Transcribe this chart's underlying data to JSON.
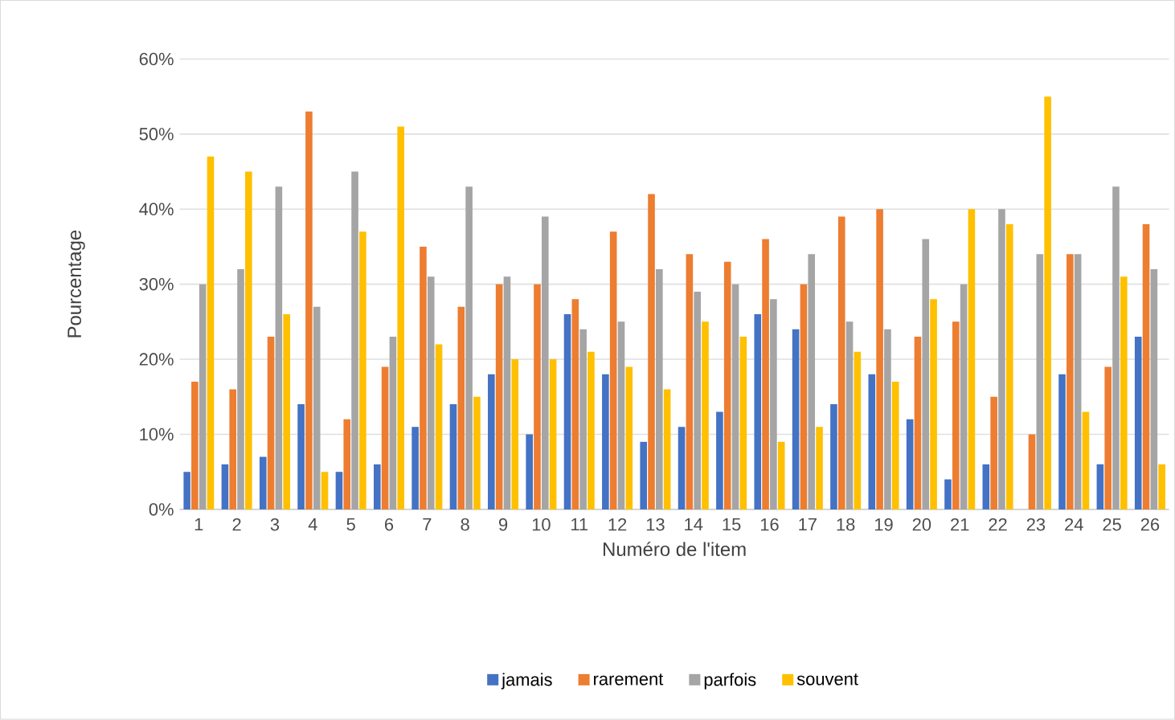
{
  "chart_data": {
    "type": "bar",
    "xlabel": "Numéro de l'item",
    "ylabel": "Pourcentage",
    "categories": [
      "1",
      "2",
      "3",
      "4",
      "5",
      "6",
      "7",
      "8",
      "9",
      "10",
      "11",
      "12",
      "13",
      "14",
      "15",
      "16",
      "17",
      "18",
      "19",
      "20",
      "21",
      "22",
      "23",
      "24",
      "25",
      "26"
    ],
    "series": [
      {
        "name": "jamais",
        "color": "#4472c4",
        "values": [
          5,
          6,
          7,
          14,
          5,
          6,
          11,
          14,
          18,
          10,
          26,
          18,
          9,
          11,
          13,
          26,
          24,
          14,
          18,
          12,
          4,
          6,
          0,
          18,
          6,
          23
        ]
      },
      {
        "name": "rarement",
        "color": "#ed7d31",
        "values": [
          17,
          16,
          23,
          53,
          12,
          19,
          35,
          27,
          30,
          30,
          28,
          37,
          42,
          34,
          33,
          36,
          30,
          39,
          40,
          23,
          25,
          15,
          10,
          34,
          19,
          38
        ]
      },
      {
        "name": "parfois",
        "color": "#a5a5a5",
        "values": [
          30,
          32,
          43,
          27,
          45,
          23,
          31,
          43,
          31,
          39,
          24,
          25,
          32,
          29,
          30,
          28,
          34,
          25,
          24,
          36,
          30,
          40,
          34,
          34,
          43,
          32
        ]
      },
      {
        "name": "souvent",
        "color": "#ffc000",
        "values": [
          47,
          45,
          26,
          5,
          37,
          51,
          22,
          15,
          20,
          20,
          21,
          19,
          16,
          25,
          23,
          9,
          11,
          21,
          17,
          28,
          40,
          38,
          55,
          13,
          31,
          6
        ]
      }
    ],
    "ylim": [
      0,
      60
    ],
    "yticks": [
      {
        "value": 0,
        "label": "0%"
      },
      {
        "value": 10,
        "label": "10%"
      },
      {
        "value": 20,
        "label": "20%"
      },
      {
        "value": 30,
        "label": "30%"
      },
      {
        "value": 40,
        "label": "40%"
      },
      {
        "value": 50,
        "label": "50%"
      },
      {
        "value": 60,
        "label": "60%"
      }
    ],
    "grid": "y",
    "legend": "bottom"
  }
}
